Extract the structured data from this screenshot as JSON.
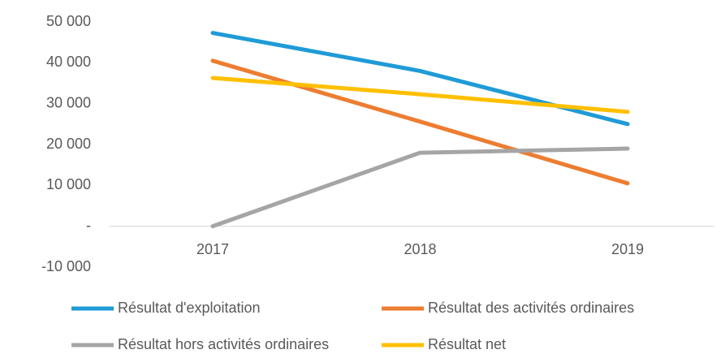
{
  "chart_data": {
    "type": "line",
    "categories": [
      "2017",
      "2018",
      "2019"
    ],
    "series": [
      {
        "name": "Résultat d'exploitation",
        "color": "#1f9bd7",
        "values": [
          47300,
          38000,
          25000
        ]
      },
      {
        "name": "Résultat des activités ordinaires",
        "color": "#ed7d31",
        "values": [
          40500,
          25600,
          10500
        ]
      },
      {
        "name": "Résultat hors activités ordinaires",
        "color": "#a5a5a5",
        "values": [
          0,
          18000,
          19000
        ]
      },
      {
        "name": "Résultat net",
        "color": "#ffc000",
        "values": [
          36300,
          32300,
          28000
        ]
      }
    ],
    "ylim": [
      -10000,
      50000
    ],
    "yticks": [
      {
        "value": -10000,
        "label": "-10 000"
      },
      {
        "value": 0,
        "label": "-"
      },
      {
        "value": 10000,
        "label": "10 000"
      },
      {
        "value": 20000,
        "label": "20 000"
      },
      {
        "value": 30000,
        "label": "30 000"
      },
      {
        "value": 40000,
        "label": "40 000"
      },
      {
        "value": 50000,
        "label": "50 000"
      }
    ],
    "grid": false,
    "legend": "bottom"
  }
}
